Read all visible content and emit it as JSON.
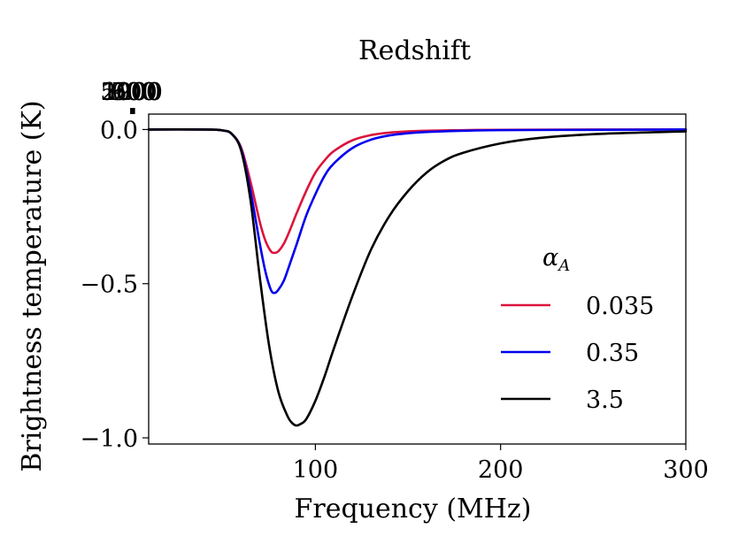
{
  "chart_data": {
    "type": "line",
    "title": "",
    "xlabel": "Frequency (MHz)",
    "ylabel": "Brightness temperature (K)",
    "top_xlabel": "Redshift",
    "xlim": [
      10,
      300
    ],
    "ylim": [
      -1.02,
      0.05
    ],
    "x_ticks": [
      100,
      200,
      300
    ],
    "x_tick_labels": [
      "100",
      "200",
      "300"
    ],
    "y_ticks": [
      0.0,
      -0.5,
      -1.0
    ],
    "y_tick_labels": [
      "0.0",
      "−0.5",
      "−1.0"
    ],
    "top_ticks": [
      {
        "z": 5000,
        "label": "5000"
      },
      {
        "z": 2000,
        "label": "2000"
      },
      {
        "z": 1200,
        "label": "1200"
      },
      {
        "z": 900,
        "label": "900"
      },
      {
        "z": 700,
        "label": "700"
      },
      {
        "z": 600,
        "label": "600"
      }
    ],
    "legend": {
      "title": "α",
      "title_subscript": "A",
      "position": "right"
    },
    "series": [
      {
        "name": "0.035",
        "color": "#dc143c",
        "x": [
          10,
          40,
          50,
          55,
          60,
          65,
          70,
          73,
          76,
          78,
          80,
          83,
          86,
          90,
          95,
          100,
          105,
          110,
          120,
          130,
          140,
          150,
          160,
          180,
          200,
          250,
          300
        ],
        "y": [
          0.0,
          0.0,
          -0.003,
          -0.015,
          -0.06,
          -0.17,
          -0.3,
          -0.36,
          -0.395,
          -0.4,
          -0.395,
          -0.37,
          -0.33,
          -0.27,
          -0.2,
          -0.14,
          -0.1,
          -0.07,
          -0.035,
          -0.018,
          -0.01,
          -0.006,
          -0.004,
          -0.002,
          -0.001,
          0.0,
          0.0
        ]
      },
      {
        "name": "0.35",
        "color": "#0000ee",
        "x": [
          10,
          40,
          50,
          55,
          60,
          65,
          70,
          73,
          76,
          78,
          80,
          83,
          86,
          90,
          95,
          100,
          105,
          110,
          120,
          130,
          140,
          150,
          160,
          180,
          200,
          250,
          300
        ],
        "y": [
          0.0,
          0.0,
          -0.003,
          -0.015,
          -0.065,
          -0.2,
          -0.37,
          -0.46,
          -0.52,
          -0.53,
          -0.52,
          -0.49,
          -0.44,
          -0.37,
          -0.28,
          -0.21,
          -0.15,
          -0.11,
          -0.06,
          -0.033,
          -0.019,
          -0.012,
          -0.008,
          -0.004,
          -0.002,
          -0.001,
          0.0
        ]
      },
      {
        "name": "3.5",
        "color": "#000000",
        "x": [
          10,
          40,
          50,
          55,
          60,
          65,
          70,
          75,
          80,
          85,
          88,
          90,
          92,
          95,
          100,
          105,
          110,
          120,
          130,
          140,
          150,
          160,
          170,
          180,
          200,
          220,
          250,
          300
        ],
        "y": [
          0.0,
          0.0,
          -0.003,
          -0.015,
          -0.07,
          -0.23,
          -0.48,
          -0.7,
          -0.85,
          -0.93,
          -0.955,
          -0.96,
          -0.955,
          -0.94,
          -0.88,
          -0.8,
          -0.71,
          -0.54,
          -0.39,
          -0.28,
          -0.2,
          -0.14,
          -0.1,
          -0.075,
          -0.045,
          -0.028,
          -0.015,
          -0.006
        ]
      }
    ]
  }
}
